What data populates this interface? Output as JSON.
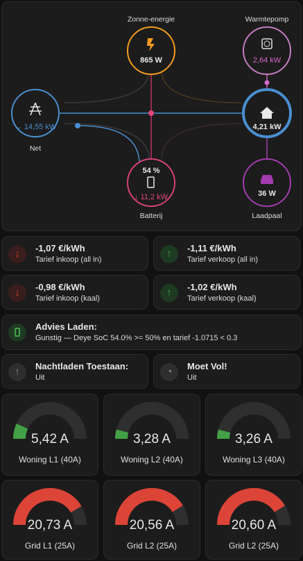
{
  "energy_flow": {
    "solar": {
      "label": "Zonne-energie",
      "value": "865 W"
    },
    "heatpump": {
      "label": "Warmtepomp",
      "value": "2,64 kW"
    },
    "grid": {
      "label": "Net",
      "value": "→ 14,55 kW"
    },
    "home": {
      "value": "4,21 kW"
    },
    "battery": {
      "label": "Batterij",
      "soc": "54 %",
      "value": "↓ 11,2 kW"
    },
    "charger": {
      "label": "Laadpaal",
      "value": "36 W"
    }
  },
  "tiles": [
    {
      "title": "-1,07 €/kWh",
      "subtitle": "Tarief inkoop (all in)",
      "tone": "red"
    },
    {
      "title": "-1,11 €/kWh",
      "subtitle": "Tarief verkoop (all in)",
      "tone": "green"
    },
    {
      "title": "-0,98 €/kWh",
      "subtitle": "Tarief inkoop (kaal)",
      "tone": "red"
    },
    {
      "title": "-1,02 €/kWh",
      "subtitle": "Tarief verkoop (kaal)",
      "tone": "green"
    }
  ],
  "advice": {
    "title": "Advies Laden:",
    "subtitle": "Gunstig — Deye SoC 54.0% >= 50% en tarief -1.0715 < 0.3"
  },
  "switches": [
    {
      "title": "Nachtladen Toestaan:",
      "subtitle": "Uit"
    },
    {
      "title": "Moet Vol!",
      "subtitle": "Uit"
    }
  ],
  "gauges": [
    {
      "value": 5.42,
      "max": 40,
      "value_label": "5,42 A",
      "name": "Woning L1 (40A)",
      "color": "#43a047"
    },
    {
      "value": 3.28,
      "max": 40,
      "value_label": "3,28 A",
      "name": "Woning L2 (40A)",
      "color": "#43a047"
    },
    {
      "value": 3.26,
      "max": 40,
      "value_label": "3,26 A",
      "name": "Woning L3 (40A)",
      "color": "#43a047"
    },
    {
      "value": 20.73,
      "max": 25,
      "value_label": "20,73 A",
      "name": "Grid L1 (25A)",
      "color": "#db4437"
    },
    {
      "value": 20.56,
      "max": 25,
      "value_label": "20,56 A",
      "name": "Grid L2 (25A)",
      "color": "#db4437"
    },
    {
      "value": 20.6,
      "max": 25,
      "value_label": "20,60 A",
      "name": "Grid L2 (25A)",
      "color": "#db4437"
    }
  ]
}
